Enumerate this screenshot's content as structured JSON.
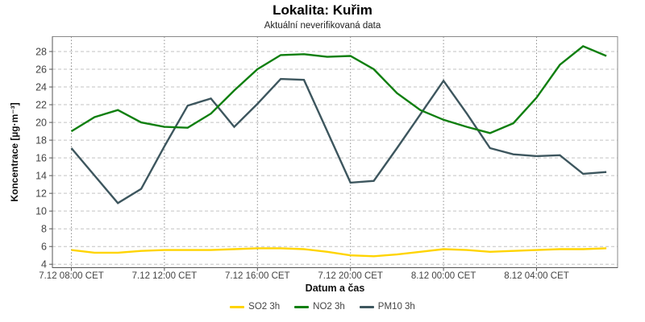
{
  "title": "Lokalita: Kuřim",
  "subtitle": "Aktuální neverifikovaná data",
  "chart_data": {
    "type": "line",
    "title": "Lokalita: Kuřim",
    "subtitle": "Aktuální neverifikovaná data",
    "xlabel": "Datum a čas",
    "ylabel": "Koncentrace [µg·m⁻³]",
    "timezone": "CET",
    "x": [
      "7.12 08:00",
      "7.12 09:00",
      "7.12 10:00",
      "7.12 11:00",
      "7.12 12:00",
      "7.12 13:00",
      "7.12 14:00",
      "7.12 15:00",
      "7.12 16:00",
      "7.12 17:00",
      "7.12 18:00",
      "7.12 19:00",
      "7.12 20:00",
      "7.12 21:00",
      "7.12 22:00",
      "7.12 23:00",
      "8.12 00:00",
      "8.12 01:00",
      "8.12 02:00",
      "8.12 03:00",
      "8.12 04:00",
      "8.12 05:00",
      "8.12 06:00",
      "8.12 07:00"
    ],
    "x_tick_labels": [
      "7.12 08:00 CET",
      "7.12 12:00 CET",
      "7.12 16:00 CET",
      "7.12 20:00 CET",
      "8.12 00:00 CET",
      "8.12 04:00 CET"
    ],
    "x_tick_indices": [
      0,
      4,
      8,
      12,
      16,
      20
    ],
    "y_ticks": [
      4,
      6,
      8,
      10,
      12,
      14,
      16,
      18,
      20,
      22,
      24,
      26,
      28
    ],
    "ylim": [
      3.55,
      29.7
    ],
    "grid": true,
    "legend_position": "bottom",
    "series": [
      {
        "name": "SO2 3h",
        "color": "#ffd400",
        "values": [
          5.6,
          5.3,
          5.3,
          5.5,
          5.6,
          5.6,
          5.6,
          5.7,
          5.8,
          5.8,
          5.7,
          5.4,
          5.0,
          4.9,
          5.1,
          5.4,
          5.7,
          5.6,
          5.4,
          5.5,
          5.6,
          5.7,
          5.7,
          5.8
        ]
      },
      {
        "name": "NO2 3h",
        "color": "#0f7f0f",
        "values": [
          19.0,
          20.6,
          21.4,
          20.0,
          19.5,
          19.4,
          21.0,
          23.6,
          26.0,
          27.6,
          27.7,
          27.4,
          27.5,
          26.0,
          23.3,
          21.4,
          20.3,
          19.5,
          18.8,
          19.9,
          22.8,
          26.5,
          28.6,
          27.5
        ]
      },
      {
        "name": "PM10 3h",
        "color": "#3d565e",
        "values": [
          17.1,
          14.0,
          10.9,
          12.5,
          17.3,
          21.9,
          22.7,
          19.5,
          22.1,
          24.9,
          24.8,
          19.0,
          13.2,
          13.4,
          17.1,
          20.9,
          24.7,
          21.0,
          17.1,
          16.4,
          16.2,
          16.3,
          14.2,
          14.4
        ]
      }
    ],
    "colors": {
      "frame": "#8a8a8a",
      "axis": "#555555",
      "grid_h": "#c3c3c3",
      "grid_v": "#8f8f8f",
      "tick_text": "#444444"
    }
  }
}
